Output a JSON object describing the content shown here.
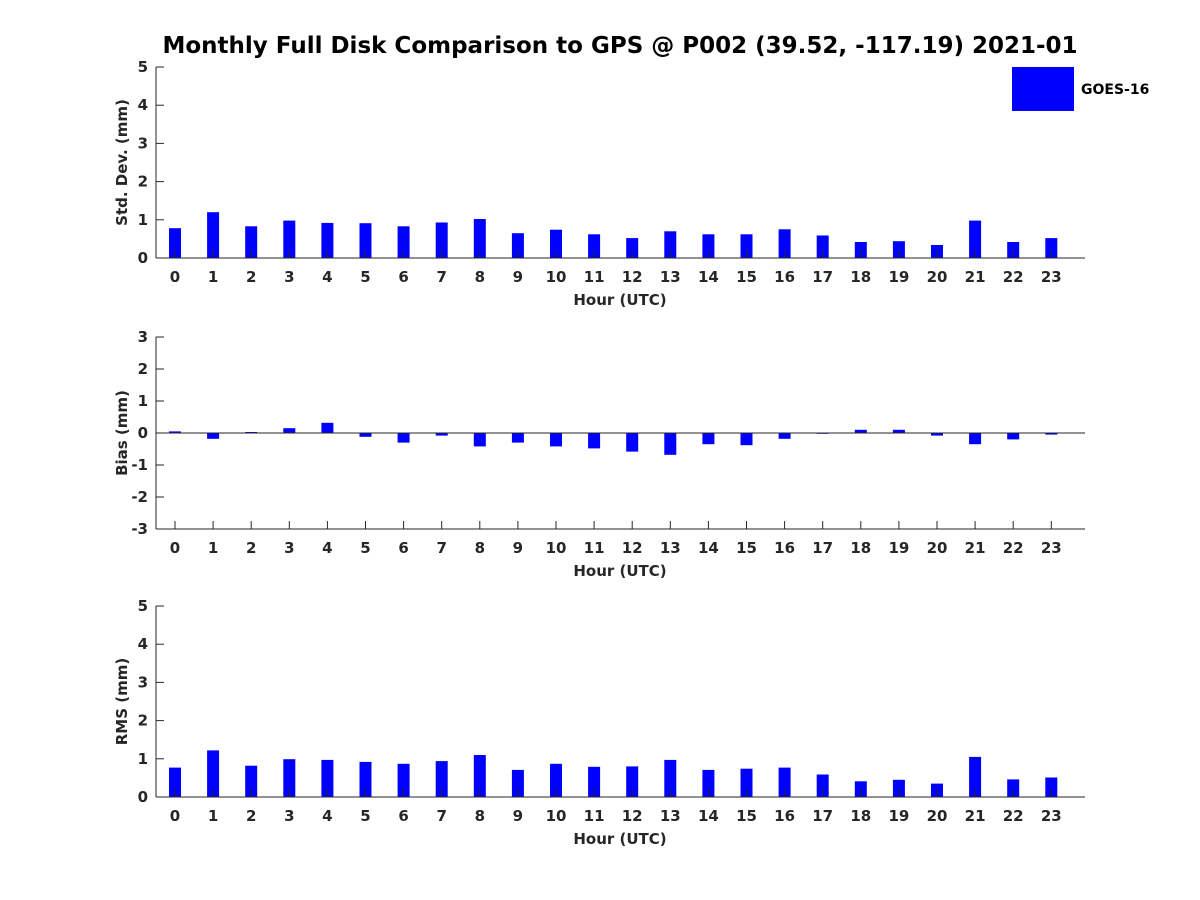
{
  "title": "Monthly Full Disk Comparison to GPS @ P002 (39.52, -117.19) 2021-01",
  "legend": {
    "label": "GOES-16",
    "color": "#0000ff"
  },
  "chart_data": [
    {
      "type": "bar",
      "name": "std",
      "xlabel": "Hour (UTC)",
      "ylabel": "Std. Dev. (mm)",
      "ylim": [
        0,
        5
      ],
      "yticks": [
        0,
        1,
        2,
        3,
        4,
        5
      ],
      "categories": [
        "0",
        "1",
        "2",
        "3",
        "4",
        "5",
        "6",
        "7",
        "8",
        "9",
        "10",
        "11",
        "12",
        "13",
        "14",
        "15",
        "16",
        "17",
        "18",
        "19",
        "20",
        "21",
        "22",
        "23"
      ],
      "series": [
        {
          "name": "GOES-16",
          "values": [
            0.78,
            1.2,
            0.83,
            0.98,
            0.92,
            0.91,
            0.83,
            0.93,
            1.02,
            0.65,
            0.74,
            0.62,
            0.52,
            0.7,
            0.62,
            0.62,
            0.75,
            0.59,
            0.42,
            0.44,
            0.34,
            0.98,
            0.42,
            0.52
          ]
        }
      ],
      "grid": false
    },
    {
      "type": "bar",
      "name": "bias",
      "xlabel": "Hour (UTC)",
      "ylabel": "Bias (mm)",
      "ylim": [
        -3,
        3
      ],
      "yticks": [
        -3,
        -2,
        -1,
        0,
        1,
        2,
        3
      ],
      "categories": [
        "0",
        "1",
        "2",
        "3",
        "4",
        "5",
        "6",
        "7",
        "8",
        "9",
        "10",
        "11",
        "12",
        "13",
        "14",
        "15",
        "16",
        "17",
        "18",
        "19",
        "20",
        "21",
        "22",
        "23"
      ],
      "series": [
        {
          "name": "GOES-16",
          "values": [
            0.05,
            -0.18,
            0.03,
            0.15,
            0.32,
            -0.12,
            -0.3,
            -0.08,
            -0.42,
            -0.3,
            -0.42,
            -0.48,
            -0.58,
            -0.68,
            -0.35,
            -0.38,
            -0.18,
            -0.01,
            0.1,
            0.1,
            -0.08,
            -0.35,
            -0.2,
            -0.05
          ]
        }
      ],
      "grid": false
    },
    {
      "type": "bar",
      "name": "rms",
      "xlabel": "Hour (UTC)",
      "ylabel": "RMS (mm)",
      "ylim": [
        0,
        5
      ],
      "yticks": [
        0,
        1,
        2,
        3,
        4,
        5
      ],
      "categories": [
        "0",
        "1",
        "2",
        "3",
        "4",
        "5",
        "6",
        "7",
        "8",
        "9",
        "10",
        "11",
        "12",
        "13",
        "14",
        "15",
        "16",
        "17",
        "18",
        "19",
        "20",
        "21",
        "22",
        "23"
      ],
      "series": [
        {
          "name": "GOES-16",
          "values": [
            0.77,
            1.22,
            0.82,
            0.99,
            0.97,
            0.92,
            0.87,
            0.94,
            1.1,
            0.71,
            0.87,
            0.79,
            0.8,
            0.97,
            0.71,
            0.74,
            0.77,
            0.59,
            0.41,
            0.45,
            0.35,
            1.05,
            0.46,
            0.51
          ]
        }
      ],
      "grid": false
    }
  ]
}
